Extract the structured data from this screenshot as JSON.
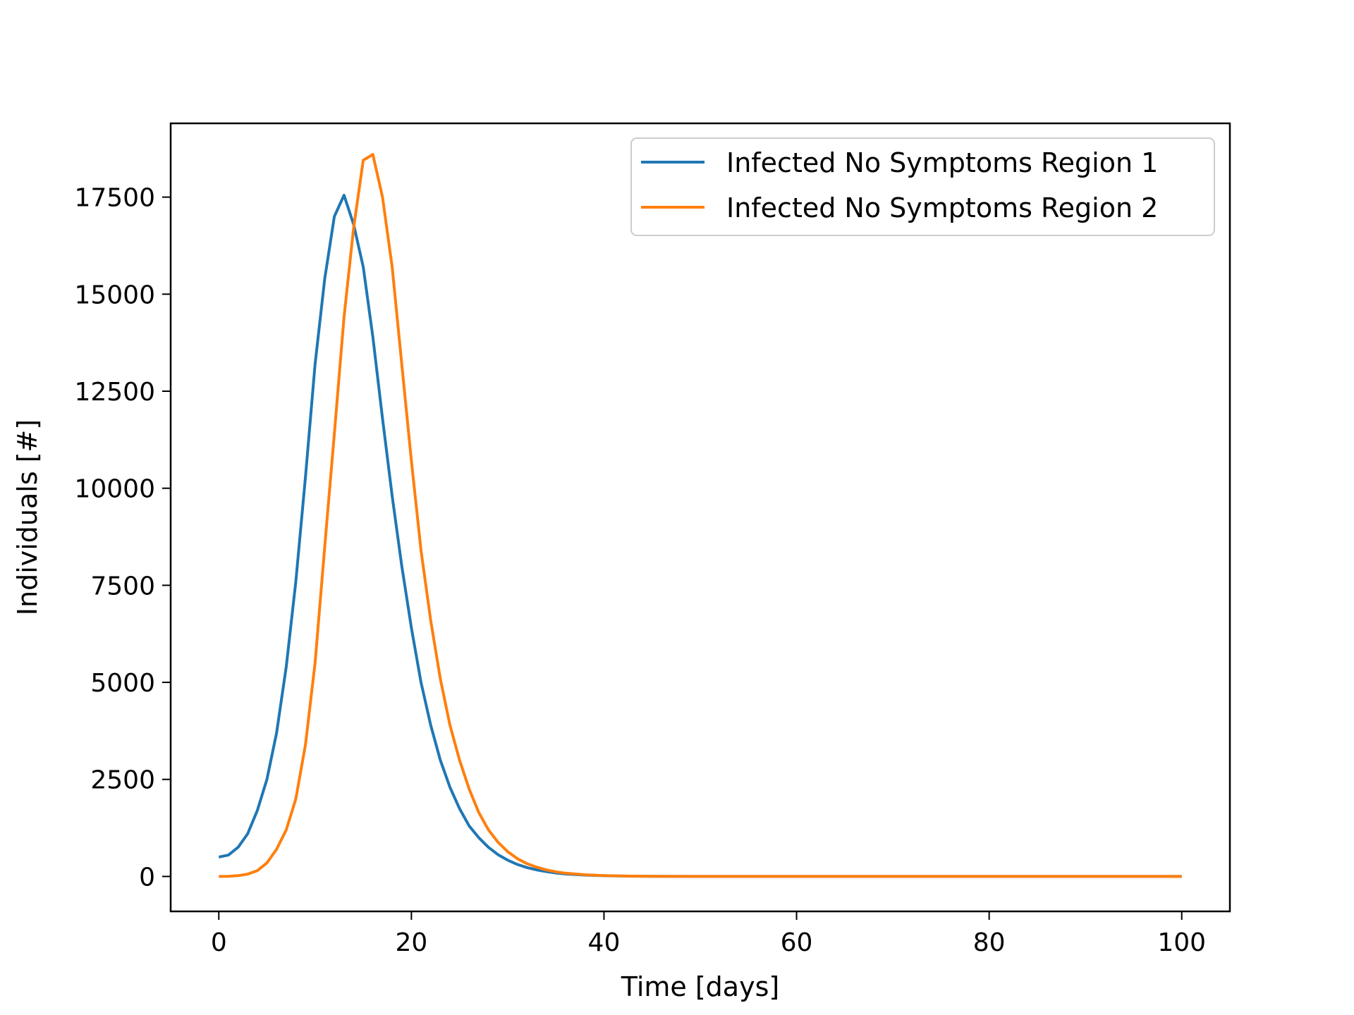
{
  "chart_data": {
    "type": "line",
    "title": "",
    "xlabel": "Time [days]",
    "ylabel": "Individuals [#]",
    "xlim": [
      -5,
      105
    ],
    "ylim": [
      -900,
      19400
    ],
    "xticks": [
      0,
      20,
      40,
      60,
      80,
      100
    ],
    "yticks": [
      0,
      2500,
      5000,
      7500,
      10000,
      12500,
      15000,
      17500
    ],
    "grid": false,
    "legend_position": "top-right",
    "series": [
      {
        "name": "Infected No Symptoms Region 1",
        "color": "#1f77b4",
        "x": [
          0,
          1,
          2,
          3,
          4,
          5,
          6,
          7,
          8,
          9,
          10,
          11,
          12,
          13,
          14,
          15,
          16,
          17,
          18,
          19,
          20,
          21,
          22,
          23,
          24,
          25,
          26,
          27,
          28,
          29,
          30,
          31,
          32,
          33,
          34,
          35,
          36,
          38,
          40,
          42,
          45,
          50,
          55,
          60,
          70,
          80,
          90,
          100
        ],
        "y": [
          500,
          550,
          750,
          1100,
          1700,
          2500,
          3700,
          5400,
          7600,
          10300,
          13200,
          15400,
          17000,
          17550,
          16800,
          15700,
          13900,
          11800,
          9800,
          8000,
          6400,
          5000,
          3900,
          3000,
          2300,
          1750,
          1300,
          1000,
          750,
          560,
          420,
          310,
          230,
          170,
          125,
          90,
          65,
          35,
          18,
          9,
          4,
          1,
          0,
          0,
          0,
          0,
          0,
          0
        ]
      },
      {
        "name": "Infected No Symptoms Region 2",
        "color": "#ff7f0e",
        "x": [
          0,
          1,
          2,
          3,
          4,
          5,
          6,
          7,
          8,
          9,
          10,
          11,
          12,
          13,
          14,
          15,
          16,
          17,
          18,
          19,
          20,
          21,
          22,
          23,
          24,
          25,
          26,
          27,
          28,
          29,
          30,
          31,
          32,
          33,
          34,
          35,
          36,
          38,
          40,
          42,
          45,
          50,
          55,
          60,
          70,
          80,
          90,
          100
        ],
        "y": [
          0,
          5,
          20,
          60,
          150,
          350,
          700,
          1200,
          2000,
          3400,
          5500,
          8500,
          11400,
          14400,
          16700,
          18450,
          18600,
          17500,
          15700,
          13200,
          10700,
          8400,
          6600,
          5100,
          3900,
          3000,
          2250,
          1650,
          1200,
          880,
          640,
          460,
          330,
          240,
          170,
          120,
          85,
          45,
          22,
          11,
          5,
          1,
          0,
          0,
          0,
          0,
          0,
          0
        ]
      }
    ]
  }
}
